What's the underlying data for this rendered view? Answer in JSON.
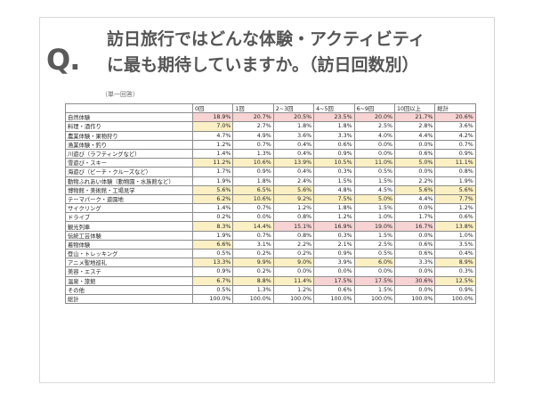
{
  "header": {
    "q_mark": "Q.",
    "title_line1": "訪日旅行ではどんな体験・アクティビティ",
    "title_line2": "に最も期待していますか。（訪日回数別）",
    "note": "（単一回答）"
  },
  "colors": {
    "yellow_highlight": "#fbf0c4",
    "pink_highlight": "#f7d3d3"
  },
  "table": {
    "columns": [
      "0回",
      "1回",
      "2~3回",
      "4~5回",
      "6~9回",
      "10回以上",
      "総計"
    ],
    "rows": [
      {
        "label": "自然体験",
        "values": [
          "18.9%",
          "20.7%",
          "20.5%",
          "23.5%",
          "20.0%",
          "21.7%",
          "20.6%"
        ],
        "hl": [
          "p",
          "p",
          "p",
          "p",
          "p",
          "p",
          "p"
        ]
      },
      {
        "label": "料理・酒作り",
        "values": [
          "7.0%",
          "2.7%",
          "1.8%",
          "1.8%",
          "2.5%",
          "2.8%",
          "3.6%"
        ],
        "hl": [
          "y",
          "",
          "",
          "",
          "",
          "",
          ""
        ]
      },
      {
        "label": "農業体験・果物狩り",
        "values": [
          "4.7%",
          "4.9%",
          "3.6%",
          "3.3%",
          "4.0%",
          "4.4%",
          "4.2%"
        ],
        "hl": [
          "",
          "",
          "",
          "",
          "",
          "",
          ""
        ]
      },
      {
        "label": "漁業体験・釣り",
        "values": [
          "1.2%",
          "0.7%",
          "0.4%",
          "0.6%",
          "0.0%",
          "0.0%",
          "0.7%"
        ],
        "hl": [
          "",
          "",
          "",
          "",
          "",
          "",
          ""
        ]
      },
      {
        "label": "川遊び（ラフティングなど）",
        "values": [
          "1.4%",
          "1.3%",
          "0.4%",
          "0.9%",
          "0.0%",
          "0.6%",
          "0.9%"
        ],
        "hl": [
          "",
          "",
          "",
          "",
          "",
          "",
          ""
        ]
      },
      {
        "label": "雪遊び・スキー",
        "values": [
          "11.2%",
          "10.6%",
          "13.9%",
          "10.5%",
          "11.0%",
          "5.0%",
          "11.1%"
        ],
        "hl": [
          "y",
          "y",
          "y",
          "y",
          "y",
          "y",
          "y"
        ]
      },
      {
        "label": "海遊び（ビーチ・クルーズなど）",
        "values": [
          "1.7%",
          "0.9%",
          "0.4%",
          "0.3%",
          "0.5%",
          "0.0%",
          "0.8%"
        ],
        "hl": [
          "",
          "",
          "",
          "",
          "",
          "",
          ""
        ]
      },
      {
        "label": "動物ふれあい体験（動物園・水族館など）",
        "values": [
          "1.9%",
          "1.8%",
          "2.4%",
          "1.5%",
          "1.5%",
          "2.2%",
          "1.9%"
        ],
        "hl": [
          "",
          "",
          "",
          "",
          "",
          "",
          ""
        ]
      },
      {
        "label": "博物館・美術館・工場見学",
        "values": [
          "5.6%",
          "6.5%",
          "5.6%",
          "4.8%",
          "4.5%",
          "5.6%",
          "5.6%"
        ],
        "hl": [
          "y",
          "y",
          "y",
          "",
          "",
          "y",
          "y"
        ]
      },
      {
        "label": "テーマパーク・遊園地",
        "values": [
          "6.2%",
          "10.6%",
          "9.2%",
          "7.5%",
          "5.0%",
          "4.4%",
          "7.7%"
        ],
        "hl": [
          "y",
          "y",
          "y",
          "y",
          "y",
          "",
          "y"
        ]
      },
      {
        "label": "サイクリング",
        "values": [
          "1.4%",
          "0.7%",
          "1.2%",
          "1.8%",
          "1.5%",
          "0.0%",
          "1.2%"
        ],
        "hl": [
          "",
          "",
          "",
          "",
          "",
          "",
          ""
        ]
      },
      {
        "label": "ドライブ",
        "values": [
          "0.2%",
          "0.0%",
          "0.8%",
          "1.2%",
          "1.0%",
          "1.7%",
          "0.6%"
        ],
        "hl": [
          "",
          "",
          "",
          "",
          "",
          "",
          ""
        ]
      },
      {
        "label": "観光列車",
        "values": [
          "8.3%",
          "14.4%",
          "15.1%",
          "16.9%",
          "19.0%",
          "16.7%",
          "13.8%"
        ],
        "hl": [
          "y",
          "y",
          "p",
          "p",
          "p",
          "p",
          "y"
        ]
      },
      {
        "label": "伝統工芸体験",
        "values": [
          "1.9%",
          "0.7%",
          "0.8%",
          "0.3%",
          "1.5%",
          "0.0%",
          "1.0%"
        ],
        "hl": [
          "",
          "",
          "",
          "",
          "",
          "",
          ""
        ]
      },
      {
        "label": "着物体験",
        "values": [
          "6.6%",
          "3.1%",
          "2.2%",
          "2.1%",
          "2.5%",
          "0.6%",
          "3.5%"
        ],
        "hl": [
          "y",
          "",
          "",
          "",
          "",
          "",
          ""
        ]
      },
      {
        "label": "登山・トレッキング",
        "values": [
          "0.5%",
          "0.2%",
          "0.2%",
          "0.9%",
          "0.5%",
          "0.6%",
          "0.4%"
        ],
        "hl": [
          "",
          "",
          "",
          "",
          "",
          "",
          ""
        ]
      },
      {
        "label": "アニメ聖地巡礼",
        "values": [
          "13.3%",
          "9.9%",
          "9.0%",
          "3.9%",
          "6.0%",
          "3.3%",
          "8.9%"
        ],
        "hl": [
          "y",
          "y",
          "y",
          "",
          "y",
          "",
          "y"
        ]
      },
      {
        "label": "美容・エステ",
        "values": [
          "0.9%",
          "0.2%",
          "0.0%",
          "0.0%",
          "0.0%",
          "0.0%",
          "0.3%"
        ],
        "hl": [
          "",
          "",
          "",
          "",
          "",
          "",
          ""
        ]
      },
      {
        "label": "温泉・旅館",
        "values": [
          "6.7%",
          "8.8%",
          "11.4%",
          "17.5%",
          "17.5%",
          "30.6%",
          "12.5%"
        ],
        "hl": [
          "y",
          "y",
          "y",
          "p",
          "p",
          "p",
          "y"
        ]
      },
      {
        "label": "その他",
        "values": [
          "0.5%",
          "1.3%",
          "1.2%",
          "0.6%",
          "1.5%",
          "0.0%",
          "0.9%"
        ],
        "hl": [
          "",
          "",
          "",
          "",
          "",
          "",
          ""
        ]
      },
      {
        "label": "総計",
        "values": [
          "100.0%",
          "100.0%",
          "100.0%",
          "100.0%",
          "100.0%",
          "100.0%",
          "100.0%"
        ],
        "hl": [
          "",
          "",
          "",
          "",
          "",
          "",
          ""
        ]
      }
    ]
  }
}
